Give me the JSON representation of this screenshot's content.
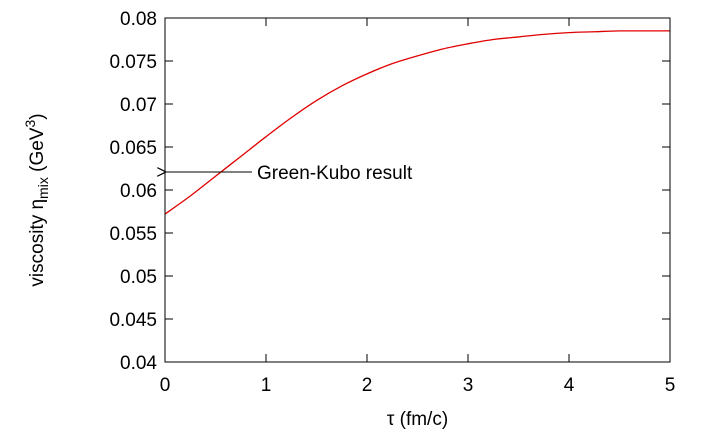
{
  "chart_data": {
    "type": "line",
    "xlabel": {
      "symbol": "τ",
      "text": " (fm/c)"
    },
    "ylabel": {
      "prefix": "viscosity ",
      "symbol": "η",
      "subscript": "mix",
      "unit_open": " (GeV",
      "superscript": "3",
      "unit_close": ")"
    },
    "xlim": [
      0,
      5
    ],
    "ylim": [
      0.04,
      0.08
    ],
    "x_ticks": [
      {
        "value": 0,
        "label": "0"
      },
      {
        "value": 1,
        "label": "1"
      },
      {
        "value": 2,
        "label": "2"
      },
      {
        "value": 3,
        "label": "3"
      },
      {
        "value": 4,
        "label": "4"
      },
      {
        "value": 5,
        "label": "5"
      }
    ],
    "y_ticks": [
      {
        "value": 0.04,
        "label": "0.04"
      },
      {
        "value": 0.045,
        "label": "0.045"
      },
      {
        "value": 0.05,
        "label": "0.05"
      },
      {
        "value": 0.055,
        "label": "0.055"
      },
      {
        "value": 0.06,
        "label": "0.06"
      },
      {
        "value": 0.065,
        "label": "0.065"
      },
      {
        "value": 0.07,
        "label": "0.07"
      },
      {
        "value": 0.075,
        "label": "0.075"
      },
      {
        "value": 0.08,
        "label": "0.08"
      }
    ],
    "grid": false,
    "series": [
      {
        "color": "#e00000",
        "x": [
          0,
          0.25,
          0.5,
          0.75,
          1.0,
          1.25,
          1.5,
          1.75,
          2.0,
          2.25,
          2.5,
          2.75,
          3.0,
          3.25,
          3.5,
          3.75,
          4.0,
          4.25,
          4.5,
          4.75,
          5.0
        ],
        "y": [
          0.0572,
          0.0593,
          0.0616,
          0.0639,
          0.0662,
          0.0684,
          0.0704,
          0.0721,
          0.0735,
          0.0747,
          0.0756,
          0.0764,
          0.077,
          0.0775,
          0.0778,
          0.0781,
          0.0783,
          0.0784,
          0.0785,
          0.0785,
          0.0785
        ]
      }
    ],
    "annotation": {
      "text": "Green-Kubo result",
      "x": 0,
      "y": 0.0621,
      "arrow": "points-left-to-y-axis"
    }
  }
}
